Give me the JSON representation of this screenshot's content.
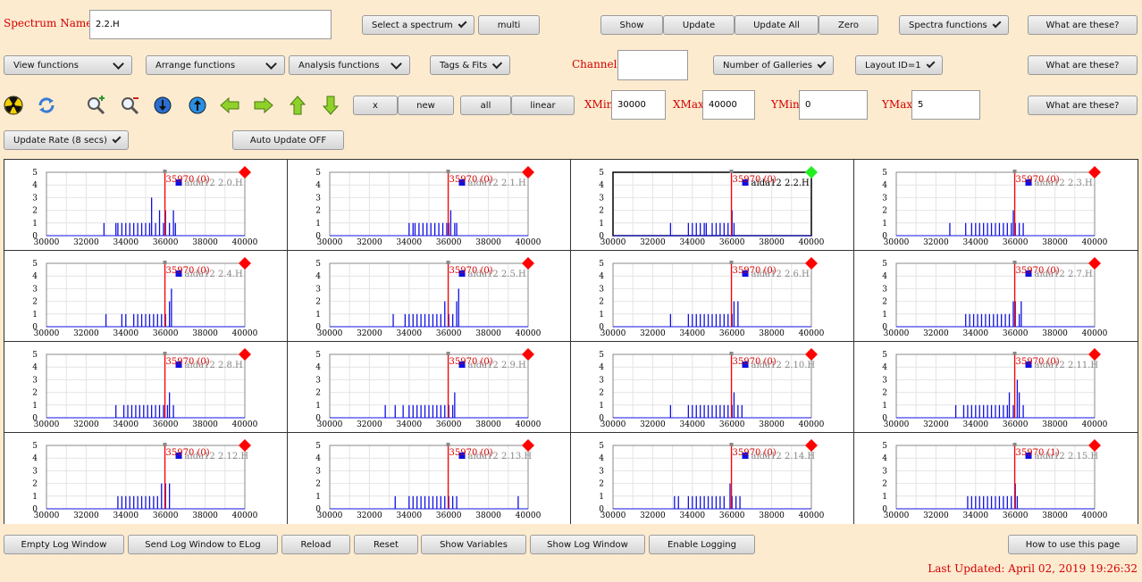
{
  "spectrum": {
    "label": "Spectrum Name:",
    "value": "2.2.H"
  },
  "toolbar1": {
    "select_spectrum": "Select a spectrum",
    "multi": "multi",
    "show": "Show",
    "update": "Update",
    "update_all": "Update All",
    "zero": "Zero",
    "spectra_functions": "Spectra functions",
    "what1": "What are these?"
  },
  "toolbar2": {
    "view_functions": "View functions",
    "arrange_functions": "Arrange functions",
    "analysis_functions": "Analysis functions",
    "tags_fits": "Tags & Fits",
    "channel_label": "Channel:",
    "channel_value": "",
    "num_galleries": "Number of Galleries",
    "layout": "Layout ID=1",
    "what2": "What are these?"
  },
  "toolbar3": {
    "icons": [
      "radiation-icon",
      "refresh-icon",
      "zoom-in-icon",
      "zoom-out-icon",
      "arrow-down-circle-icon",
      "arrow-up-circle-icon",
      "arrow-left-icon",
      "arrow-right-icon",
      "arrow-up-icon",
      "arrow-down-icon"
    ],
    "x": "x",
    "new": "new",
    "all": "all",
    "linear": "linear",
    "xmin_label": "XMin",
    "xmin": "30000",
    "xmax_label": "XMax",
    "xmax": "40000",
    "ymin_label": "YMin",
    "ymin": "0",
    "ymax_label": "YMax",
    "ymax": "5",
    "what3": "What are these?"
  },
  "toolbar4": {
    "update_rate": "Update Rate (8 secs)",
    "auto_update": "Auto Update OFF"
  },
  "bottom": {
    "empty_log": "Empty Log Window",
    "send_log": "Send Log Window to ELog",
    "reload": "Reload",
    "reset": "Reset",
    "show_variables": "Show Variables",
    "show_log": "Show Log Window",
    "enable_logging": "Enable Logging",
    "howto": "How to use this page",
    "last_updated": "Last Updated: April 02, 2019 19:26:32"
  },
  "colors": {
    "background": "#fdebd0",
    "label_red": "#d40000",
    "histogram_blue": "#1010e0",
    "marker_red": "#ff0000",
    "marker_green": "#22ee22"
  },
  "gallery": {
    "x_ticks": [
      "30000",
      "32000",
      "34000",
      "36000",
      "38000",
      "40000"
    ],
    "y_ticks": [
      "0",
      "1",
      "2",
      "3",
      "4",
      "5"
    ],
    "xlim": [
      30000,
      40000
    ],
    "ylim": [
      0,
      5
    ],
    "cursor_x": 35970,
    "panels": [
      {
        "name": "aida12 2.0.H",
        "cursor_label": "35970 (0)",
        "selected": false,
        "bins": [
          [
            32900,
            1
          ],
          [
            33500,
            1
          ],
          [
            33600,
            1
          ],
          [
            33800,
            1
          ],
          [
            34000,
            1
          ],
          [
            34200,
            1
          ],
          [
            34400,
            1
          ],
          [
            34600,
            1
          ],
          [
            34800,
            1
          ],
          [
            35000,
            1
          ],
          [
            35200,
            1
          ],
          [
            35300,
            3
          ],
          [
            35500,
            1
          ],
          [
            35700,
            2
          ],
          [
            35900,
            1
          ],
          [
            36000,
            2
          ],
          [
            36200,
            1
          ],
          [
            36400,
            2
          ],
          [
            36500,
            1
          ]
        ]
      },
      {
        "name": "aida12 2.1.H",
        "cursor_label": "35970 (0)",
        "selected": false,
        "bins": [
          [
            34000,
            1
          ],
          [
            34200,
            1
          ],
          [
            34300,
            1
          ],
          [
            34500,
            1
          ],
          [
            34700,
            1
          ],
          [
            34900,
            1
          ],
          [
            35100,
            1
          ],
          [
            35300,
            1
          ],
          [
            35500,
            1
          ],
          [
            35700,
            1
          ],
          [
            35900,
            1
          ],
          [
            36000,
            1
          ],
          [
            36100,
            2
          ],
          [
            36300,
            1
          ],
          [
            36400,
            1
          ]
        ]
      },
      {
        "name": "aida12 2.2.H",
        "cursor_label": "35970 (0)",
        "selected": true,
        "bins": [
          [
            32900,
            1
          ],
          [
            33800,
            1
          ],
          [
            34000,
            1
          ],
          [
            34200,
            1
          ],
          [
            34400,
            1
          ],
          [
            34600,
            1
          ],
          [
            34700,
            1
          ],
          [
            35000,
            1
          ],
          [
            35200,
            1
          ],
          [
            35400,
            1
          ],
          [
            35600,
            1
          ],
          [
            35800,
            1
          ],
          [
            36000,
            2
          ],
          [
            36100,
            1
          ]
        ]
      },
      {
        "name": "aida12 2.3.H",
        "cursor_label": "35970 (0)",
        "selected": false,
        "bins": [
          [
            32700,
            1
          ],
          [
            33500,
            1
          ],
          [
            33800,
            1
          ],
          [
            34000,
            1
          ],
          [
            34200,
            1
          ],
          [
            34400,
            1
          ],
          [
            34600,
            1
          ],
          [
            34800,
            1
          ],
          [
            35000,
            1
          ],
          [
            35200,
            1
          ],
          [
            35400,
            1
          ],
          [
            35600,
            1
          ],
          [
            35800,
            1
          ],
          [
            35900,
            2
          ],
          [
            36000,
            1
          ],
          [
            36200,
            1
          ],
          [
            36400,
            1
          ]
        ]
      },
      {
        "name": "aida12 2.4.H",
        "cursor_label": "35970 (0)",
        "selected": false,
        "bins": [
          [
            33000,
            1
          ],
          [
            33800,
            1
          ],
          [
            34000,
            1
          ],
          [
            34400,
            1
          ],
          [
            34600,
            1
          ],
          [
            34800,
            1
          ],
          [
            35000,
            1
          ],
          [
            35200,
            1
          ],
          [
            35400,
            1
          ],
          [
            35600,
            1
          ],
          [
            35800,
            1
          ],
          [
            36000,
            1
          ],
          [
            36200,
            2
          ],
          [
            36300,
            3
          ]
        ]
      },
      {
        "name": "aida12 2.5.H",
        "cursor_label": "35970 (0)",
        "selected": false,
        "bins": [
          [
            33200,
            1
          ],
          [
            33800,
            1
          ],
          [
            34000,
            1
          ],
          [
            34200,
            1
          ],
          [
            34400,
            1
          ],
          [
            34600,
            1
          ],
          [
            34800,
            1
          ],
          [
            35000,
            1
          ],
          [
            35200,
            1
          ],
          [
            35400,
            1
          ],
          [
            35600,
            1
          ],
          [
            35800,
            2
          ],
          [
            36000,
            1
          ],
          [
            36200,
            1
          ],
          [
            36400,
            2
          ],
          [
            36500,
            3
          ]
        ]
      },
      {
        "name": "aida12 2.6.H",
        "cursor_label": "35970 (0)",
        "selected": false,
        "bins": [
          [
            32900,
            1
          ],
          [
            33800,
            1
          ],
          [
            34000,
            1
          ],
          [
            34200,
            1
          ],
          [
            34400,
            1
          ],
          [
            34600,
            1
          ],
          [
            34800,
            1
          ],
          [
            35000,
            1
          ],
          [
            35200,
            1
          ],
          [
            35400,
            1
          ],
          [
            35600,
            1
          ],
          [
            35800,
            1
          ],
          [
            36000,
            1
          ],
          [
            36100,
            2
          ],
          [
            36300,
            2
          ]
        ]
      },
      {
        "name": "aida12 2.7.H",
        "cursor_label": "35970 (0)",
        "selected": false,
        "bins": [
          [
            33500,
            1
          ],
          [
            33700,
            1
          ],
          [
            33900,
            1
          ],
          [
            34100,
            1
          ],
          [
            34300,
            1
          ],
          [
            34500,
            1
          ],
          [
            34700,
            1
          ],
          [
            34900,
            1
          ],
          [
            35100,
            1
          ],
          [
            35300,
            1
          ],
          [
            35500,
            1
          ],
          [
            35700,
            1
          ],
          [
            35900,
            2
          ],
          [
            36000,
            2
          ],
          [
            36200,
            1
          ],
          [
            36300,
            2
          ]
        ]
      },
      {
        "name": "aida12 2.8.H",
        "cursor_label": "35970 (0)",
        "selected": false,
        "bins": [
          [
            33500,
            1
          ],
          [
            33900,
            1
          ],
          [
            34100,
            1
          ],
          [
            34300,
            1
          ],
          [
            34500,
            1
          ],
          [
            34700,
            1
          ],
          [
            34900,
            1
          ],
          [
            35100,
            1
          ],
          [
            35300,
            1
          ],
          [
            35500,
            1
          ],
          [
            35700,
            1
          ],
          [
            35900,
            1
          ],
          [
            36100,
            1
          ],
          [
            36200,
            2
          ],
          [
            36400,
            1
          ]
        ]
      },
      {
        "name": "aida12 2.9.H",
        "cursor_label": "35970 (0)",
        "selected": false,
        "bins": [
          [
            32800,
            1
          ],
          [
            33300,
            1
          ],
          [
            33700,
            1
          ],
          [
            34000,
            1
          ],
          [
            34200,
            1
          ],
          [
            34400,
            1
          ],
          [
            34600,
            1
          ],
          [
            34800,
            1
          ],
          [
            35000,
            1
          ],
          [
            35200,
            1
          ],
          [
            35400,
            1
          ],
          [
            35600,
            1
          ],
          [
            35800,
            1
          ],
          [
            36000,
            1
          ],
          [
            36200,
            1
          ],
          [
            36300,
            2
          ]
        ]
      },
      {
        "name": "aida12 2.10.H",
        "cursor_label": "35970 (0)",
        "selected": false,
        "bins": [
          [
            32900,
            1
          ],
          [
            33800,
            1
          ],
          [
            34000,
            1
          ],
          [
            34200,
            1
          ],
          [
            34400,
            1
          ],
          [
            34600,
            1
          ],
          [
            34800,
            1
          ],
          [
            35000,
            1
          ],
          [
            35200,
            1
          ],
          [
            35400,
            1
          ],
          [
            35600,
            1
          ],
          [
            35800,
            1
          ],
          [
            36000,
            1
          ],
          [
            36100,
            2
          ],
          [
            36300,
            1
          ],
          [
            36500,
            1
          ]
        ]
      },
      {
        "name": "aida12 2.11.H",
        "cursor_label": "35970 (0)",
        "selected": false,
        "bins": [
          [
            33000,
            1
          ],
          [
            33400,
            1
          ],
          [
            33600,
            1
          ],
          [
            33800,
            1
          ],
          [
            34000,
            1
          ],
          [
            34200,
            1
          ],
          [
            34400,
            1
          ],
          [
            34600,
            1
          ],
          [
            34800,
            1
          ],
          [
            35000,
            1
          ],
          [
            35200,
            1
          ],
          [
            35400,
            1
          ],
          [
            35600,
            1
          ],
          [
            35700,
            2
          ],
          [
            35900,
            1
          ],
          [
            36100,
            3
          ],
          [
            36200,
            2
          ],
          [
            36400,
            1
          ]
        ]
      },
      {
        "name": "aida12 2.12.H",
        "cursor_label": "35970 (0)",
        "selected": false,
        "bins": [
          [
            33600,
            1
          ],
          [
            33800,
            1
          ],
          [
            34000,
            1
          ],
          [
            34200,
            1
          ],
          [
            34400,
            1
          ],
          [
            34600,
            1
          ],
          [
            34800,
            1
          ],
          [
            35000,
            1
          ],
          [
            35200,
            1
          ],
          [
            35400,
            1
          ],
          [
            35600,
            1
          ],
          [
            35800,
            2
          ],
          [
            36000,
            2
          ],
          [
            36200,
            2
          ]
        ]
      },
      {
        "name": "aida12 2.13.H",
        "cursor_label": "35970 (0)",
        "selected": false,
        "bins": [
          [
            33300,
            1
          ],
          [
            34000,
            1
          ],
          [
            34200,
            1
          ],
          [
            34400,
            1
          ],
          [
            34600,
            1
          ],
          [
            34800,
            1
          ],
          [
            35000,
            1
          ],
          [
            35200,
            1
          ],
          [
            35400,
            1
          ],
          [
            35600,
            1
          ],
          [
            35800,
            1
          ],
          [
            36000,
            1
          ],
          [
            36200,
            1
          ],
          [
            36400,
            1
          ],
          [
            39500,
            1
          ]
        ]
      },
      {
        "name": "aida12 2.14.H",
        "cursor_label": "35970 (0)",
        "selected": false,
        "bins": [
          [
            33100,
            1
          ],
          [
            33300,
            1
          ],
          [
            33800,
            1
          ],
          [
            34000,
            1
          ],
          [
            34200,
            1
          ],
          [
            34400,
            1
          ],
          [
            34600,
            1
          ],
          [
            34800,
            1
          ],
          [
            35000,
            1
          ],
          [
            35200,
            1
          ],
          [
            35400,
            1
          ],
          [
            35600,
            1
          ],
          [
            35900,
            2
          ],
          [
            36000,
            1
          ],
          [
            36200,
            1
          ],
          [
            36400,
            1
          ]
        ]
      },
      {
        "name": "aida12 2.15.H",
        "cursor_label": "35970 (1)",
        "selected": false,
        "bins": [
          [
            33600,
            1
          ],
          [
            33800,
            1
          ],
          [
            34000,
            1
          ],
          [
            34200,
            1
          ],
          [
            34400,
            1
          ],
          [
            34600,
            1
          ],
          [
            34800,
            1
          ],
          [
            35000,
            1
          ],
          [
            35200,
            1
          ],
          [
            35400,
            1
          ],
          [
            35600,
            1
          ],
          [
            35800,
            1
          ],
          [
            36000,
            2
          ],
          [
            36100,
            1
          ]
        ]
      }
    ]
  }
}
